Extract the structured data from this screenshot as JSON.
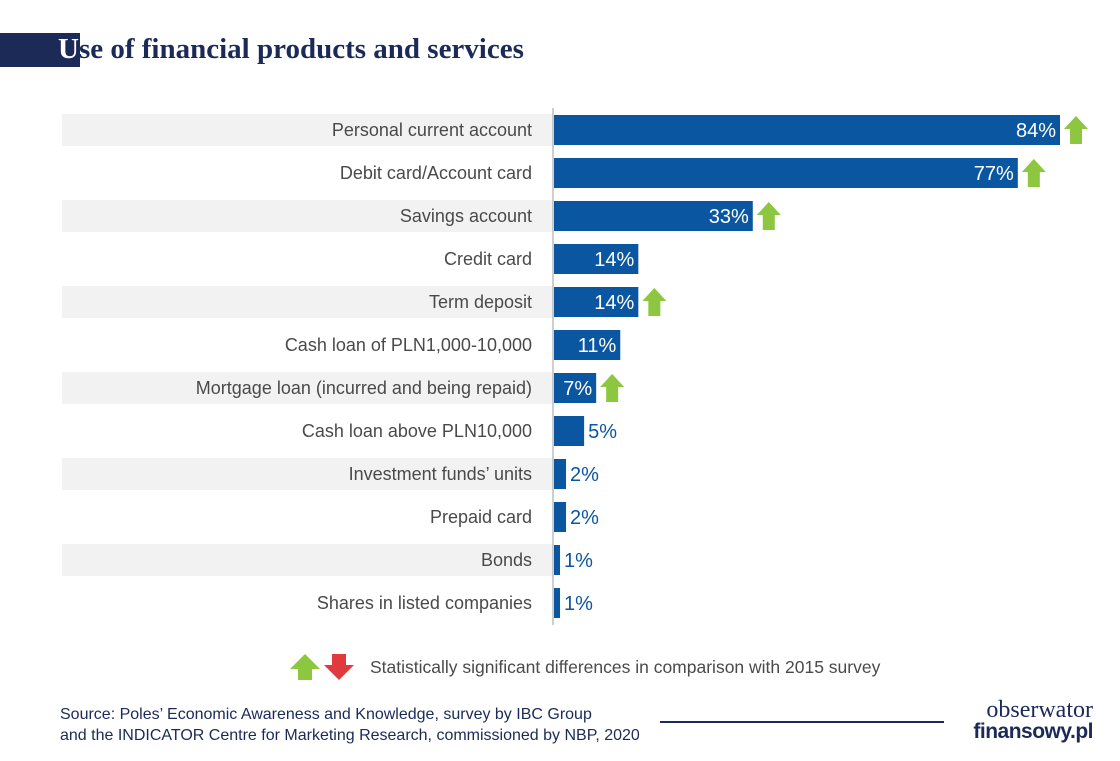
{
  "title": "Use of financial products and services",
  "title_first_letter": "U",
  "title_rest": "se of financial products and services",
  "colors": {
    "bar": "#0a56a0",
    "title": "#1b2a57",
    "band": "#f2f2f2",
    "up_arrow": "#8dc63f",
    "down_arrow": "#e03a3e",
    "label": "#4a4a4a"
  },
  "chart_data": {
    "type": "bar",
    "orientation": "horizontal",
    "title": "Use of financial products and services",
    "unit": "%",
    "xlim": [
      0,
      84
    ],
    "grid": false,
    "categories": [
      "Personal current account",
      "Debit card/Account card",
      "Savings account",
      "Credit card",
      "Term deposit",
      "Cash loan of PLN1,000-10,000",
      "Mortgage loan (incurred and being repaid)",
      "Cash loan above PLN10,000",
      "Investment funds’ units",
      "Prepaid card",
      "Bonds",
      "Shares in listed companies"
    ],
    "values": [
      84,
      77,
      33,
      14,
      14,
      11,
      7,
      5,
      2,
      2,
      1,
      1
    ],
    "value_labels": [
      "84%",
      "77%",
      "33%",
      "14%",
      "14%",
      "11%",
      "7%",
      "5%",
      "2%",
      "2%",
      "1%",
      "1%"
    ],
    "significant_change": [
      "up",
      "up",
      "up",
      "",
      "up",
      "",
      "up",
      "",
      "",
      "",
      "",
      ""
    ],
    "legend": {
      "entries": [
        "up-arrow",
        "down-arrow"
      ],
      "text": "Statistically significant differences in comparison with 2015 survey"
    }
  },
  "footer": {
    "source_line1": "Source: Poles’ Economic Awareness and Knowledge, survey by IBC Group",
    "source_line2": "and the INDICATOR Centre for Marketing Research, commissioned by NBP, 2020",
    "logo_line1": "obserwator",
    "logo_line2": "finansowy.pl"
  }
}
